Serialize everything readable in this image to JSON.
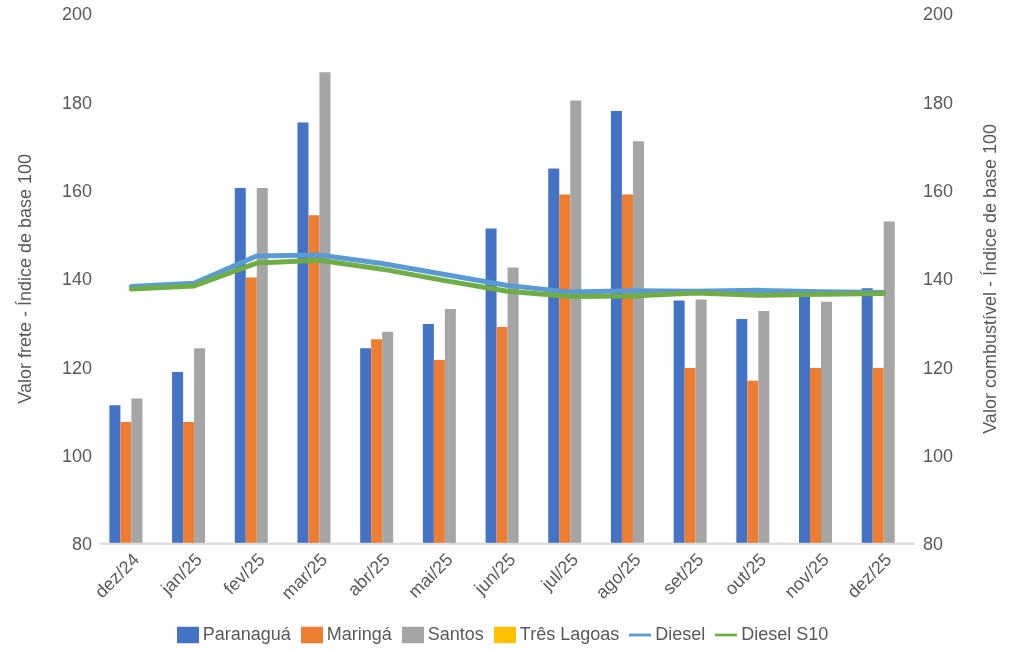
{
  "chart_data": {
    "type": "bar",
    "categories": [
      "dez/24",
      "jan/25",
      "fev/25",
      "mar/25",
      "abr/25",
      "mai/25",
      "jun/25",
      "jul/25",
      "ago/25",
      "set/25",
      "out/25",
      "nov/25",
      "dez/25"
    ],
    "ylabel": "Valor frete - Índice de base 100",
    "y2label": "Valor combustível - Índice de base 100",
    "ylim": [
      80,
      200
    ],
    "yticks": [
      80,
      100,
      120,
      140,
      160,
      180,
      200
    ],
    "y2lim": [
      80,
      200
    ],
    "y2ticks": [
      80,
      100,
      120,
      140,
      160,
      180,
      200
    ],
    "grid": false,
    "legend": "bottom",
    "series": [
      {
        "name": "Paranaguá",
        "color": "#4472c4",
        "values": [
          111.4,
          118.9,
          160.6,
          175.4,
          124.3,
          129.8,
          151.4,
          165.0,
          178.0,
          135.1,
          130.9,
          136.1,
          137.9
        ]
      },
      {
        "name": "Maringá",
        "color": "#ed7d31",
        "values": [
          107.6,
          107.6,
          140.3,
          154.4,
          126.3,
          121.6,
          129.1,
          159.1,
          159.1,
          119.8,
          116.9,
          119.8,
          119.8
        ]
      },
      {
        "name": "Santos",
        "color": "#a5a5a5",
        "values": [
          112.9,
          124.3,
          160.6,
          186.8,
          128.0,
          133.2,
          142.6,
          180.4,
          171.2,
          135.3,
          132.7,
          134.8,
          153.0
        ]
      },
      {
        "name": "Três Lagoas",
        "color": "#ffc000",
        "values": [
          null,
          null,
          null,
          null,
          null,
          null,
          null,
          null,
          null,
          null,
          null,
          null,
          null
        ]
      },
      {
        "name": "Diesel",
        "type": "line",
        "axis": "y2",
        "color": "#5b9bd5",
        "values": [
          138.3,
          139.0,
          145.2,
          145.4,
          143.5,
          141.0,
          138.5,
          137.0,
          137.3,
          137.2,
          137.4,
          137.1,
          136.9
        ]
      },
      {
        "name": "Diesel S10",
        "type": "line",
        "axis": "y2",
        "color": "#70ad47",
        "values": [
          137.7,
          138.4,
          143.6,
          144.2,
          142.2,
          139.6,
          137.2,
          136.0,
          136.1,
          136.8,
          136.3,
          136.5,
          136.7
        ]
      }
    ]
  }
}
